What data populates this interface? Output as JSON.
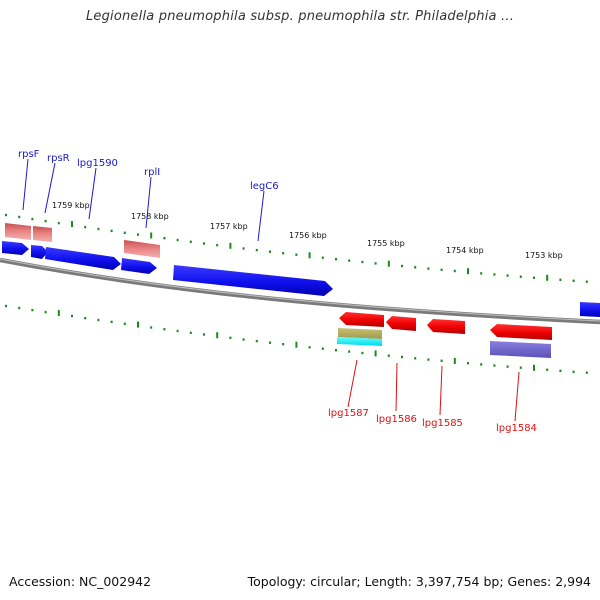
{
  "title": "Legionella pneumophila subsp. pneumophila str. Philadelphia ...",
  "footer": {
    "accession": "Accession: NC_002942",
    "summary": "Topology: circular; Length: 3,397,754 bp; Genes: 2,994"
  },
  "ticks": [
    "1759 kbp",
    "1758 kbp",
    "1757 kbp",
    "1756 kbp",
    "1755 kbp",
    "1754 kbp",
    "1753 kbp"
  ],
  "labels": {
    "rpsF": "rpsF",
    "rpsR": "rpsR",
    "lpg1590": "lpg1590",
    "rplI": "rplI",
    "legC6": "legC6",
    "lpg1587": "lpg1587",
    "lpg1586": "lpg1586",
    "lpg1585": "lpg1585",
    "lpg1584": "lpg1584"
  },
  "colors": {
    "forward_cds": "#1a1aff",
    "reverse_cds": "#ee1111",
    "rna": "#e88080",
    "backbone": "#888888",
    "tick": "#1a8a1a"
  }
}
